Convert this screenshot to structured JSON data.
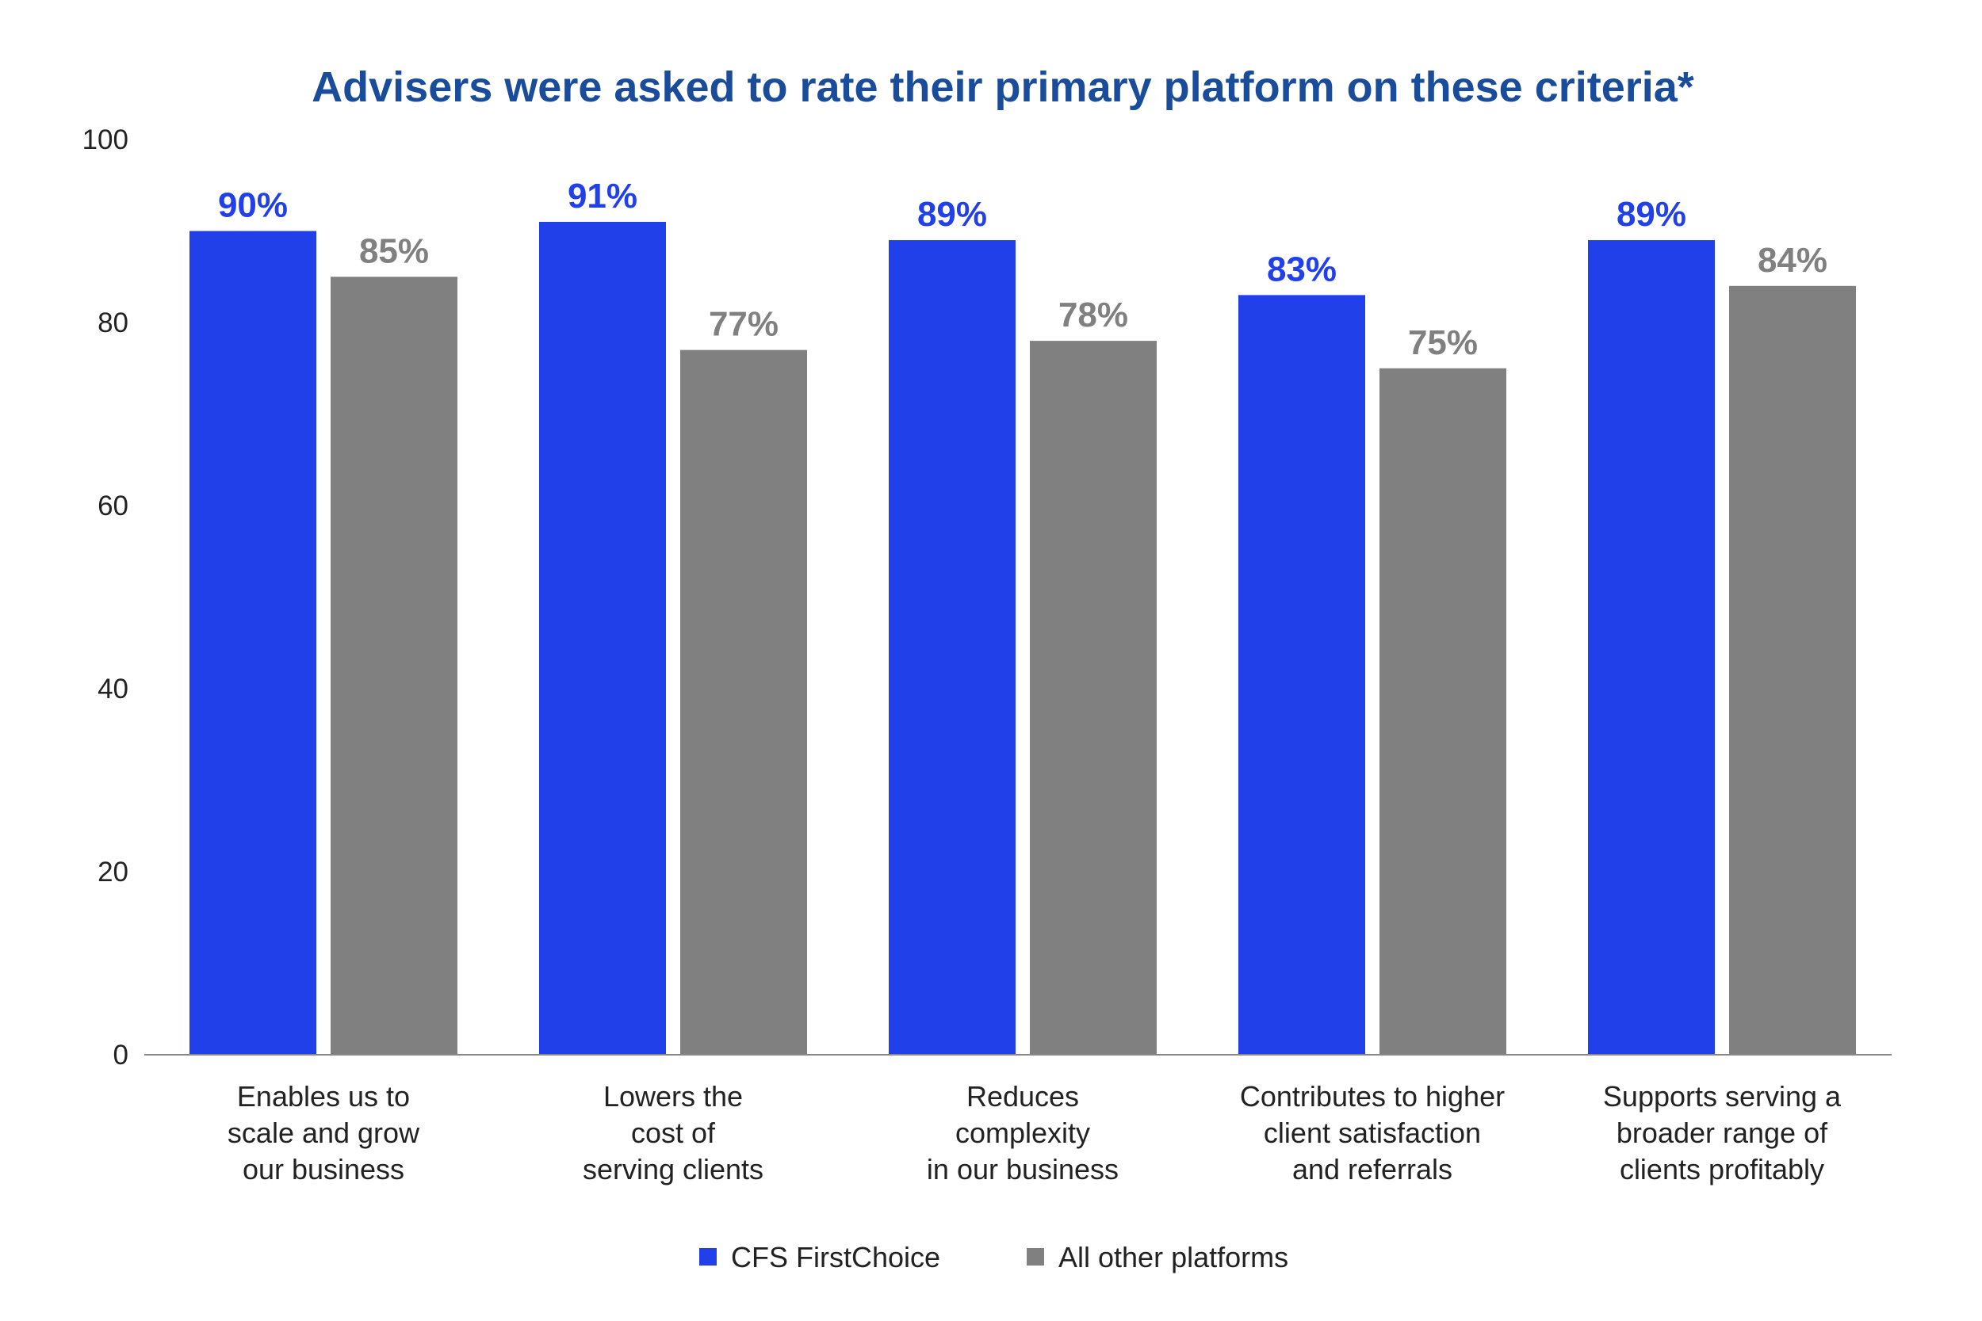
{
  "chart_data": {
    "type": "bar",
    "title": "Advisers were asked to rate their primary platform on these criteria*",
    "xlabel": "",
    "ylabel": "",
    "ylim": [
      0,
      100
    ],
    "yticks": [
      0,
      20,
      40,
      60,
      80,
      100
    ],
    "grid": false,
    "legend_position": "bottom",
    "categories": [
      [
        "Enables us to",
        "scale and grow",
        "our business"
      ],
      [
        "Lowers the",
        "cost of",
        "serving clients"
      ],
      [
        "Reduces",
        "complexity",
        "in our business"
      ],
      [
        "Contributes to higher",
        "client satisfaction",
        "and referrals"
      ],
      [
        "Supports serving a",
        "broader range of",
        "clients profitably"
      ]
    ],
    "series": [
      {
        "name": "CFS FirstChoice",
        "color": "#2140ea",
        "values": [
          90,
          91,
          89,
          83,
          89
        ],
        "labels": [
          "90%",
          "91%",
          "89%",
          "83%",
          "89%"
        ]
      },
      {
        "name": "All other platforms",
        "color": "#808080",
        "values": [
          85,
          77,
          78,
          75,
          84
        ],
        "labels": [
          "85%",
          "77%",
          "78%",
          "75%",
          "84%"
        ]
      }
    ]
  }
}
